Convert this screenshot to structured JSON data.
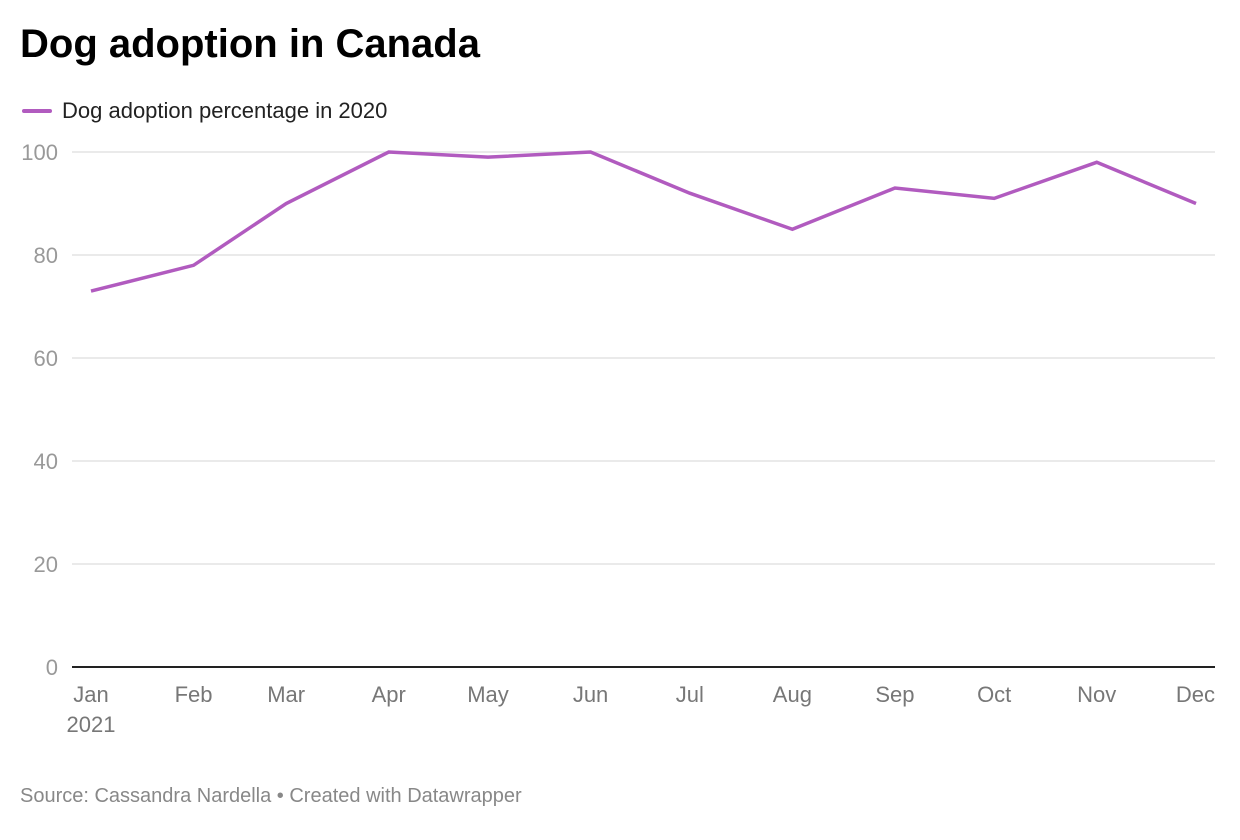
{
  "title": "Dog adoption in Canada",
  "footer": {
    "source": "Source: Cassandra Nardella • Created with Datawrapper"
  },
  "chart_data": {
    "type": "line",
    "title": "Dog adoption in Canada",
    "x": [
      "2021-01-01",
      "2021-02-01",
      "2021-03-01",
      "2021-04-01",
      "2021-05-01",
      "2021-06-01",
      "2021-07-01",
      "2021-08-01",
      "2021-09-01",
      "2021-10-01",
      "2021-11-01",
      "2021-12-01"
    ],
    "x_tick_labels": [
      "Jan",
      "Feb",
      "Mar",
      "Apr",
      "May",
      "Jun",
      "Jul",
      "Aug",
      "Sep",
      "Oct",
      "Nov",
      "Dec"
    ],
    "x_year_label": "2021",
    "series": [
      {
        "name": "Dog adoption percentage in 2020",
        "color": "#b15bbf",
        "values": [
          73,
          78,
          90,
          100,
          99,
          100,
          92,
          85,
          93,
          91,
          98,
          90
        ]
      }
    ],
    "y_ticks": [
      0,
      20,
      40,
      60,
      80,
      100
    ],
    "ylim": [
      0,
      100
    ],
    "grid": true,
    "legend": "top-left"
  }
}
